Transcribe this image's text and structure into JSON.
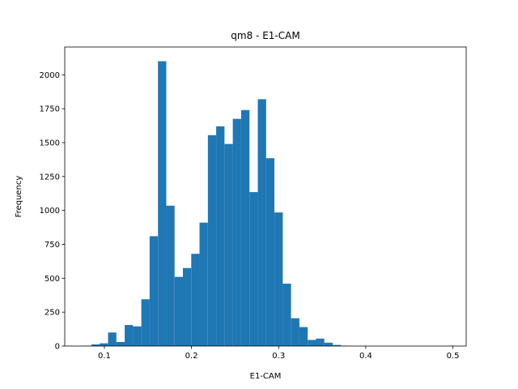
{
  "chart_data": {
    "type": "bar",
    "title": "qm8 - E1-CAM",
    "xlabel": "E1-CAM",
    "ylabel": "Frequency",
    "xlim": [
      0.0545,
      0.5153
    ],
    "ylim": [
      0,
      2205
    ],
    "grid": false,
    "legend": "none",
    "bar_color": "#1f77b4",
    "bin_width": 0.00955,
    "xticks": [
      0.1,
      0.2,
      0.3,
      0.4,
      0.5
    ],
    "xtick_labels": [
      "0.1",
      "0.2",
      "0.3",
      "0.4",
      "0.5"
    ],
    "yticks": [
      0,
      250,
      500,
      750,
      1000,
      1250,
      1500,
      1750,
      2000
    ],
    "ytick_labels": [
      "0",
      "250",
      "500",
      "750",
      "1000",
      "1250",
      "1500",
      "1750",
      "2000"
    ],
    "bins": [
      0.0755,
      0.0851,
      0.0946,
      0.1042,
      0.1137,
      0.1233,
      0.1328,
      0.1424,
      0.1519,
      0.1615,
      0.171,
      0.1806,
      0.1901,
      0.1997,
      0.2092,
      0.2188,
      0.2283,
      0.2379,
      0.2474,
      0.257,
      0.2665,
      0.2761,
      0.2856,
      0.2952,
      0.3047,
      0.3143,
      0.3238,
      0.3334,
      0.3429,
      0.3525,
      0.362,
      0.3716,
      0.3811,
      0.3907,
      0.4002,
      0.4098,
      0.4193,
      0.4289,
      0.4384,
      0.448,
      0.4575,
      0.4671,
      0.4766,
      0.4862,
      0.4957
    ],
    "values": [
      2,
      12,
      20,
      100,
      30,
      155,
      145,
      345,
      810,
      2100,
      1035,
      510,
      575,
      680,
      910,
      1555,
      1620,
      1490,
      1675,
      1740,
      1135,
      1820,
      1385,
      985,
      460,
      205,
      140,
      45,
      55,
      25,
      8,
      2,
      0,
      0,
      0,
      0,
      0,
      0,
      0,
      0,
      0,
      0,
      0,
      0,
      1
    ]
  }
}
